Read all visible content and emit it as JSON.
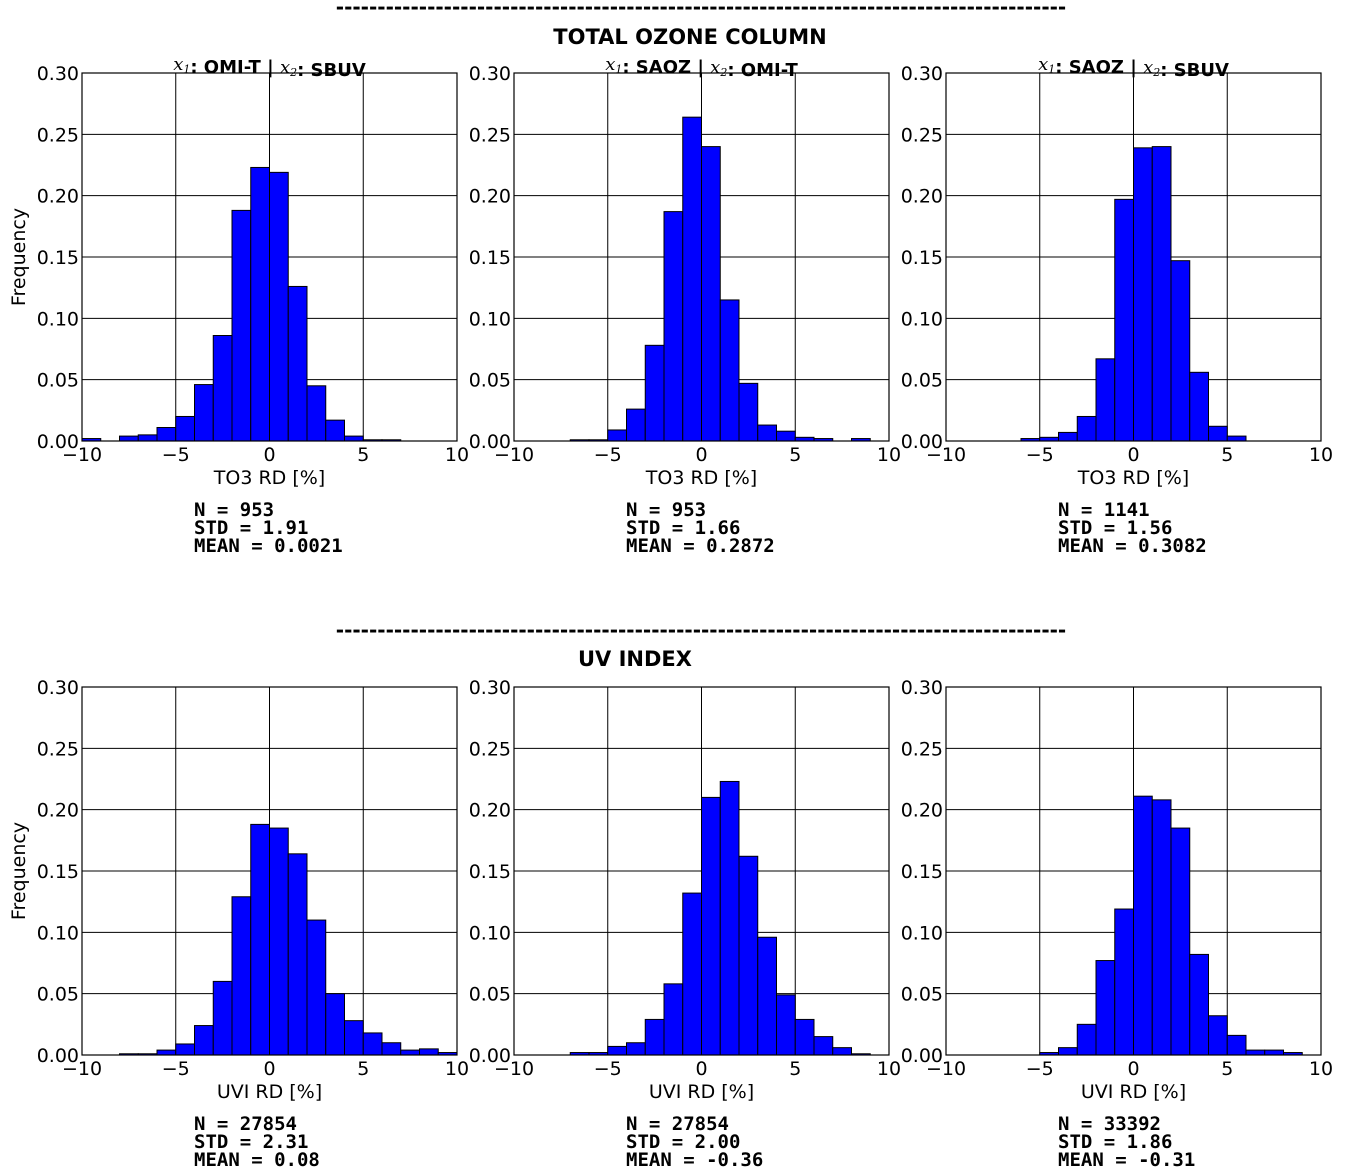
{
  "sections": [
    {
      "title": "TOTAL OZONE COLUMN",
      "separator": "----------------------------------------------------------------------------------------",
      "xlabel": "TO3 RD [%]",
      "ylabel": "Frequency"
    },
    {
      "title": "UV INDEX",
      "separator": "----------------------------------------------------------------------------------------",
      "xlabel": "UVI RD [%]",
      "ylabel": "Frequency"
    }
  ],
  "colors": {
    "bar": "#0000ff",
    "edge": "#000000",
    "grid": "#000000"
  },
  "chart_data": [
    {
      "type": "bar",
      "title_parts": [
        {
          "var": "x",
          "sub": "1"
        },
        ": OMI-T | ",
        {
          "var": "x",
          "sub": "2"
        },
        ": SBUV"
      ],
      "xlabel": "TO3 RD [%]",
      "ylabel": "Frequency",
      "xlim": [
        -10,
        10
      ],
      "ylim": [
        0,
        0.3
      ],
      "xticks": [
        "−10",
        "−5",
        "0",
        "5",
        "10"
      ],
      "yticks": [
        "0.00",
        "0.05",
        "0.10",
        "0.15",
        "0.20",
        "0.25",
        "0.30"
      ],
      "grid": true,
      "bin_edges": [
        -10,
        -9,
        -8,
        -7,
        -6,
        -5,
        -4,
        -3,
        -2,
        -1,
        0,
        1,
        2,
        3,
        4,
        5,
        6,
        7,
        8,
        9,
        10
      ],
      "values": [
        0.002,
        0.0,
        0.004,
        0.005,
        0.011,
        0.02,
        0.046,
        0.086,
        0.188,
        0.223,
        0.219,
        0.126,
        0.045,
        0.017,
        0.004,
        0.001,
        0.001,
        0.0,
        0.0,
        0.0
      ],
      "stats": {
        "n": "N = 953",
        "std": "STD   = 1.91",
        "mean": "MEAN  = 0.0021"
      }
    },
    {
      "type": "bar",
      "title_parts": [
        {
          "var": "x",
          "sub": "1"
        },
        ": SAOZ | ",
        {
          "var": "x",
          "sub": "2"
        },
        ": OMI-T"
      ],
      "xlabel": "TO3 RD [%]",
      "ylabel": "",
      "xlim": [
        -10,
        10
      ],
      "ylim": [
        0,
        0.3
      ],
      "xticks": [
        "−10",
        "−5",
        "0",
        "5",
        "10"
      ],
      "yticks": [
        "0.00",
        "0.05",
        "0.10",
        "0.15",
        "0.20",
        "0.25",
        "0.30"
      ],
      "grid": true,
      "bin_edges": [
        -10,
        -9,
        -8,
        -7,
        -6,
        -5,
        -4,
        -3,
        -2,
        -1,
        0,
        1,
        2,
        3,
        4,
        5,
        6,
        7,
        8,
        9,
        10
      ],
      "values": [
        0.0,
        0.0,
        0.0,
        0.001,
        0.001,
        0.009,
        0.026,
        0.078,
        0.187,
        0.264,
        0.24,
        0.115,
        0.047,
        0.013,
        0.008,
        0.003,
        0.002,
        0.0,
        0.002,
        0.0
      ],
      "stats": {
        "n": "N = 953",
        "std": "STD   = 1.66",
        "mean": "MEAN  = 0.2872"
      }
    },
    {
      "type": "bar",
      "title_parts": [
        {
          "var": "x",
          "sub": "1"
        },
        ": SAOZ | ",
        {
          "var": "x",
          "sub": "2"
        },
        ": SBUV"
      ],
      "xlabel": "TO3 RD [%]",
      "ylabel": "",
      "xlim": [
        -10,
        10
      ],
      "ylim": [
        0,
        0.3
      ],
      "xticks": [
        "−10",
        "−5",
        "0",
        "5",
        "10"
      ],
      "yticks": [
        "0.00",
        "0.05",
        "0.10",
        "0.15",
        "0.20",
        "0.25",
        "0.30"
      ],
      "grid": true,
      "bin_edges": [
        -10,
        -9,
        -8,
        -7,
        -6,
        -5,
        -4,
        -3,
        -2,
        -1,
        0,
        1,
        2,
        3,
        4,
        5,
        6,
        7,
        8,
        9,
        10
      ],
      "values": [
        0.0,
        0.0,
        0.0,
        0.0,
        0.002,
        0.003,
        0.007,
        0.02,
        0.067,
        0.197,
        0.239,
        0.24,
        0.147,
        0.056,
        0.012,
        0.004,
        0.0,
        0.0,
        0.0,
        0.0
      ],
      "stats": {
        "n": "N = 1141",
        "std": "STD   = 1.56",
        "mean": "MEAN  = 0.3082"
      }
    },
    {
      "type": "bar",
      "title_parts": [],
      "xlabel": "UVI RD [%]",
      "ylabel": "Frequency",
      "xlim": [
        -10,
        10
      ],
      "ylim": [
        0,
        0.3
      ],
      "xticks": [
        "−10",
        "−5",
        "0",
        "5",
        "10"
      ],
      "yticks": [
        "0.00",
        "0.05",
        "0.10",
        "0.15",
        "0.20",
        "0.25",
        "0.30"
      ],
      "grid": true,
      "bin_edges": [
        -10,
        -9,
        -8,
        -7,
        -6,
        -5,
        -4,
        -3,
        -2,
        -1,
        0,
        1,
        2,
        3,
        4,
        5,
        6,
        7,
        8,
        9,
        10
      ],
      "values": [
        0.0,
        0.0,
        0.001,
        0.001,
        0.004,
        0.009,
        0.024,
        0.06,
        0.129,
        0.188,
        0.185,
        0.164,
        0.11,
        0.05,
        0.028,
        0.018,
        0.01,
        0.004,
        0.005,
        0.002
      ],
      "stats": {
        "n": "N = 27854",
        "std": "STD   = 2.31",
        "mean": "MEAN  = 0.08"
      }
    },
    {
      "type": "bar",
      "title_parts": [],
      "xlabel": "UVI RD [%]",
      "ylabel": "",
      "xlim": [
        -10,
        10
      ],
      "ylim": [
        0,
        0.3
      ],
      "xticks": [
        "−10",
        "−5",
        "0",
        "5",
        "10"
      ],
      "yticks": [
        "0.00",
        "0.05",
        "0.10",
        "0.15",
        "0.20",
        "0.25",
        "0.30"
      ],
      "grid": true,
      "bin_edges": [
        -10,
        -9,
        -8,
        -7,
        -6,
        -5,
        -4,
        -3,
        -2,
        -1,
        0,
        1,
        2,
        3,
        4,
        5,
        6,
        7,
        8,
        9,
        10
      ],
      "values": [
        0.0,
        0.0,
        0.0,
        0.002,
        0.002,
        0.007,
        0.01,
        0.029,
        0.058,
        0.132,
        0.21,
        0.223,
        0.162,
        0.096,
        0.049,
        0.029,
        0.015,
        0.006,
        0.001,
        0.0
      ],
      "stats": {
        "n": "N = 27854",
        "std": "STD   = 2.00",
        "mean": "MEAN  = -0.36"
      }
    },
    {
      "type": "bar",
      "title_parts": [],
      "xlabel": "UVI RD [%]",
      "ylabel": "",
      "xlim": [
        -10,
        10
      ],
      "ylim": [
        0,
        0.3
      ],
      "xticks": [
        "−10",
        "−5",
        "0",
        "5",
        "10"
      ],
      "yticks": [
        "0.00",
        "0.05",
        "0.10",
        "0.15",
        "0.20",
        "0.25",
        "0.30"
      ],
      "grid": true,
      "bin_edges": [
        -10,
        -9,
        -8,
        -7,
        -6,
        -5,
        -4,
        -3,
        -2,
        -1,
        0,
        1,
        2,
        3,
        4,
        5,
        6,
        7,
        8,
        9,
        10
      ],
      "values": [
        0.0,
        0.0,
        0.0,
        0.0,
        0.0,
        0.002,
        0.006,
        0.025,
        0.077,
        0.119,
        0.211,
        0.208,
        0.185,
        0.082,
        0.032,
        0.016,
        0.004,
        0.004,
        0.002,
        0.0
      ],
      "stats": {
        "n": "N = 33392",
        "std": "STD   = 1.86",
        "mean": "MEAN  = -0.31"
      }
    }
  ]
}
